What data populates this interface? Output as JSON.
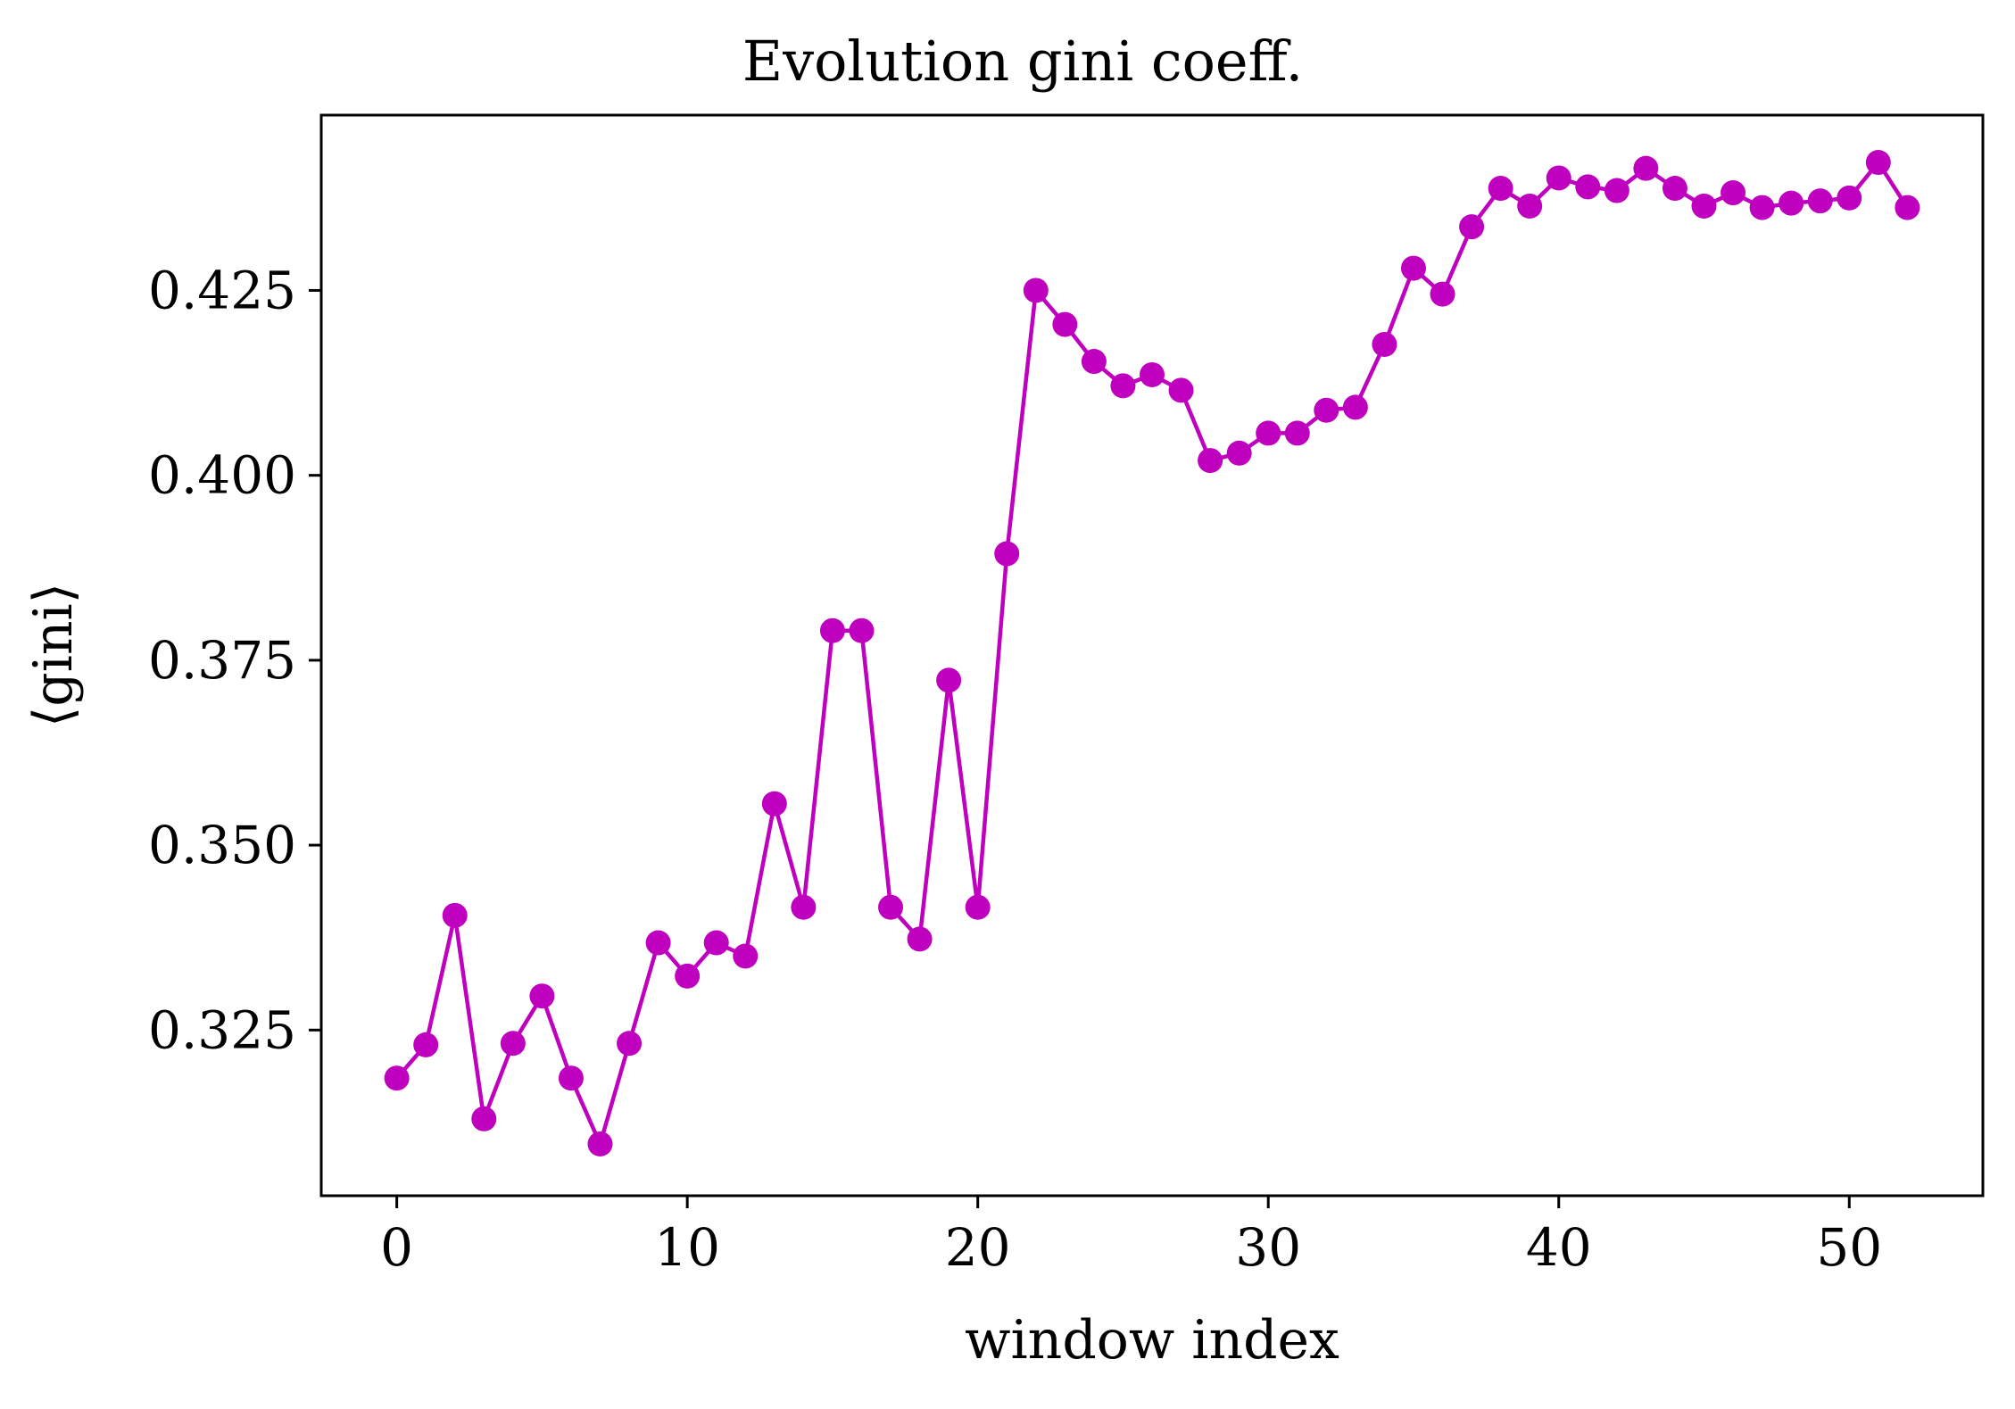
{
  "chart_data": {
    "type": "line",
    "title": "Evolution gini coeff.",
    "xlabel": "window index",
    "ylabel": "⟨gini⟩",
    "xlim": [
      -2.6,
      54.6
    ],
    "ylim": [
      0.3026,
      0.4487
    ],
    "xticks": [
      0,
      10,
      20,
      30,
      40,
      50
    ],
    "yticks": [
      0.325,
      0.35,
      0.375,
      0.4,
      0.425
    ],
    "xtick_labels": [
      "0",
      "10",
      "20",
      "30",
      "40",
      "50"
    ],
    "ytick_labels": [
      "0.325",
      "0.350",
      "0.375",
      "0.400",
      "0.425"
    ],
    "grid": false,
    "color": "#BF00BF",
    "series": [
      {
        "marker": "circle",
        "x": [
          0,
          1,
          2,
          3,
          4,
          5,
          6,
          7,
          8,
          9,
          10,
          11,
          12,
          13,
          14,
          15,
          16,
          17,
          18,
          19,
          20,
          21,
          22,
          23,
          24,
          25,
          26,
          27,
          28,
          29,
          30,
          31,
          32,
          33,
          34,
          35,
          36,
          37,
          38,
          39,
          40,
          41,
          42,
          43,
          44,
          45,
          46,
          47,
          48,
          49,
          50,
          51,
          52
        ],
        "y": [
          0.3185,
          0.323,
          0.3405,
          0.313,
          0.3232,
          0.3296,
          0.3185,
          0.3096,
          0.3232,
          0.3368,
          0.3323,
          0.3368,
          0.335,
          0.3556,
          0.3416,
          0.379,
          0.379,
          0.3416,
          0.3373,
          0.3723,
          0.3416,
          0.3894,
          0.425,
          0.4204,
          0.4154,
          0.4121,
          0.4136,
          0.4115,
          0.402,
          0.403,
          0.4057,
          0.4057,
          0.4088,
          0.4092,
          0.4177,
          0.428,
          0.4245,
          0.4336,
          0.4388,
          0.4364,
          0.4402,
          0.439,
          0.4385,
          0.4415,
          0.4388,
          0.4364,
          0.4382,
          0.4362,
          0.4368,
          0.4371,
          0.4375,
          0.4423,
          0.4362
        ]
      }
    ]
  }
}
